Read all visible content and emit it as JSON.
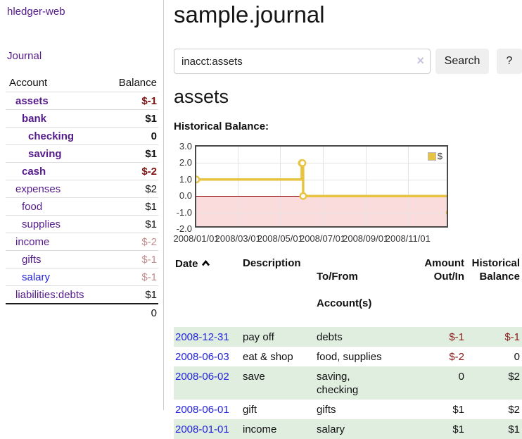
{
  "sidebar": {
    "app_title": "hledger-web",
    "journal_label": "Journal",
    "accounts_table": {
      "headers": {
        "account": "Account",
        "balance": "Balance"
      },
      "rows": [
        {
          "name": "assets",
          "depth": 1,
          "bold": true,
          "balance": "$-1",
          "balance_class": "neg-strong"
        },
        {
          "name": "bank",
          "depth": 2,
          "bold": true,
          "balance": "$1",
          "balance_class": "pos"
        },
        {
          "name": "checking",
          "depth": 3,
          "bold": true,
          "balance": "0",
          "balance_class": "pos"
        },
        {
          "name": "saving",
          "depth": 3,
          "bold": true,
          "balance": "$1",
          "balance_class": "pos"
        },
        {
          "name": "cash",
          "depth": 2,
          "bold": true,
          "balance": "$-2",
          "balance_class": "neg-strong"
        },
        {
          "name": "expenses",
          "depth": 1,
          "bold": false,
          "balance": "$2",
          "balance_class": "pos"
        },
        {
          "name": "food",
          "depth": 2,
          "bold": false,
          "balance": "$1",
          "balance_class": "pos"
        },
        {
          "name": "supplies",
          "depth": 2,
          "bold": false,
          "balance": "$1",
          "balance_class": "pos"
        },
        {
          "name": "income",
          "depth": 1,
          "bold": false,
          "balance": "$-2",
          "balance_class": "neg-muted"
        },
        {
          "name": "gifts",
          "depth": 2,
          "bold": false,
          "balance": "$-1",
          "balance_class": "neg-muted"
        },
        {
          "name": "salary",
          "depth": 2,
          "bold": false,
          "balance": "$-1",
          "balance_class": "neg-muted",
          "name_class": "blue"
        },
        {
          "name": "liabilities:debts",
          "depth": 1,
          "bold": false,
          "balance": "$1",
          "balance_class": "pos"
        }
      ],
      "total": "0"
    }
  },
  "main": {
    "title": "sample.journal",
    "search": {
      "value": "inacct:assets",
      "clear_glyph": "×",
      "button_label": "Search",
      "help_label": "?"
    },
    "section_heading": "assets",
    "chart_label": "Historical Balance:"
  },
  "chart_data": {
    "type": "line",
    "title": "Historical Balance:",
    "steps": true,
    "series": [
      {
        "name": "$",
        "color": "#e8c341",
        "points": [
          [
            "2008-01-01",
            1
          ],
          [
            "2008-06-01",
            2
          ],
          [
            "2008-06-02",
            2
          ],
          [
            "2008-06-03",
            0
          ],
          [
            "2008-12-31",
            -1
          ]
        ]
      }
    ],
    "x_range": [
      "2008-01-01",
      "2008-12-31"
    ],
    "ylim": [
      -2,
      3
    ],
    "yticks": [
      "3.0",
      "2.0",
      "1.0",
      "0.0",
      "-1.0",
      "-2.0"
    ],
    "xticks": [
      "2008/01/01",
      "2008/03/01",
      "2008/05/01",
      "2008/07/01",
      "2008/09/01",
      "2008/11/01"
    ],
    "legend": {
      "label": "$",
      "position": "top-right"
    },
    "grid": true,
    "negative_region_color": "#fbdcdc",
    "zero_line_color": "#8b0000"
  },
  "register_table": {
    "headers": {
      "date": "Date",
      "description": "Description",
      "tofrom1": "To/From",
      "tofrom2": "Account(s)",
      "amount1": "Amount",
      "amount2": "Out/In",
      "balance1": "Historical",
      "balance2": "Balance"
    },
    "rows": [
      {
        "date": "2008-12-31",
        "description": "pay off",
        "accounts": "debts",
        "amount": "$-1",
        "amount_neg": true,
        "balance": "$-1",
        "balance_neg": true
      },
      {
        "date": "2008-06-03",
        "description": "eat & shop",
        "accounts": "food, supplies",
        "amount": "$-2",
        "amount_neg": true,
        "balance": "0",
        "balance_neg": false
      },
      {
        "date": "2008-06-02",
        "description": "save",
        "accounts": "saving,\nchecking",
        "amount": "0",
        "amount_neg": false,
        "balance": "$2",
        "balance_neg": false
      },
      {
        "date": "2008-06-01",
        "description": "gift",
        "accounts": "gifts",
        "amount": "$1",
        "amount_neg": false,
        "balance": "$2",
        "balance_neg": false
      },
      {
        "date": "2008-01-01",
        "description": "income",
        "accounts": "salary",
        "amount": "$1",
        "amount_neg": false,
        "balance": "$1",
        "balance_neg": false
      }
    ]
  },
  "colors": {
    "link_purple": "#551a8b",
    "link_blue": "#2323dd",
    "negative_strong": "#7d1212",
    "negative": "#8b1a1a",
    "negative_muted": "#c28e8e",
    "chart_line": "#e8c341",
    "chart_negative_region": "#fbdcdc",
    "chart_zero_line": "#8b0000",
    "row_stripe_green": "#dfeedf",
    "button_bg": "#efefef"
  }
}
